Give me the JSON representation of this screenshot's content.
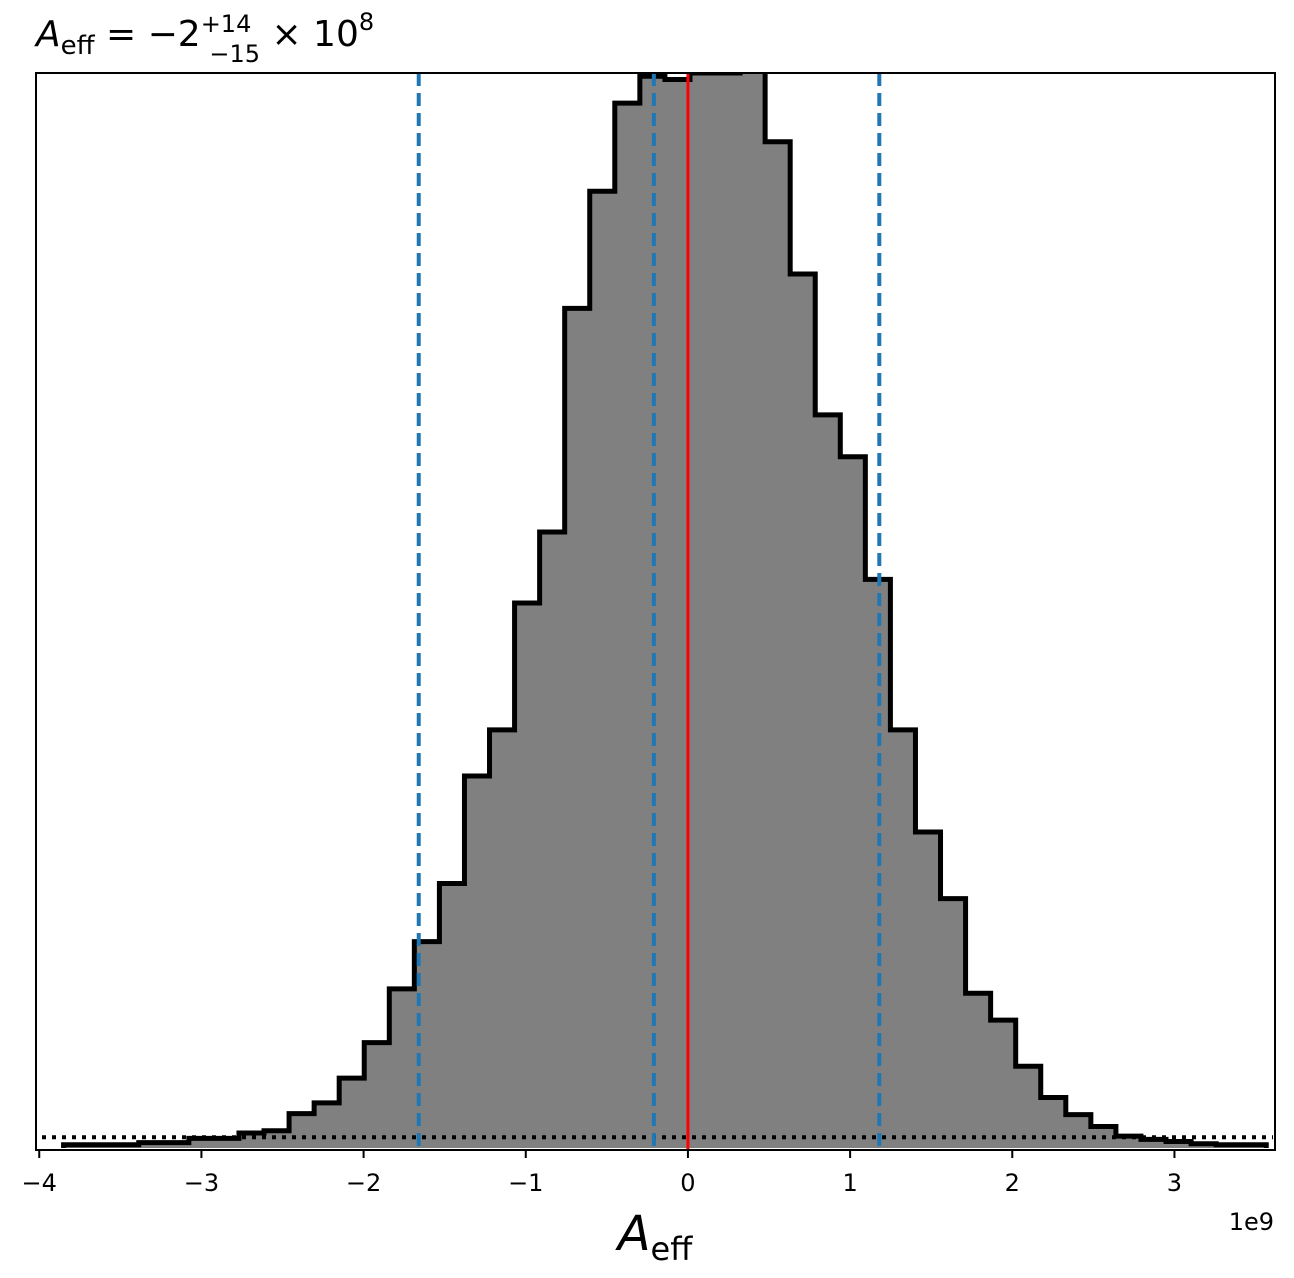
{
  "chart_data": {
    "type": "bar",
    "histogram": true,
    "title": {
      "base": "A",
      "sub": "eff",
      "eq": " = −2",
      "sup": "+14",
      "low": "−15",
      "times": " × 10",
      "exp": "8"
    },
    "xlabel": {
      "base": "A",
      "sub": "eff"
    },
    "x_offset_label": "1e9",
    "xlim": [
      -4.02,
      3.62
    ],
    "ylim": [
      0,
      1.0
    ],
    "xticks": [
      -4,
      -3,
      -2,
      -1,
      0,
      1,
      2,
      3
    ],
    "xtick_labels": [
      "−4",
      "−3",
      "−2",
      "−1",
      "0",
      "1",
      "2",
      "3"
    ],
    "y_axis_visible": false,
    "bin_width": 0.1545,
    "bin_start": -3.85,
    "bin_values": [
      0.003,
      0.003,
      0.003,
      0.005,
      0.005,
      0.009,
      0.009,
      0.014,
      0.016,
      0.032,
      0.042,
      0.065,
      0.098,
      0.148,
      0.192,
      0.246,
      0.346,
      0.389,
      0.507,
      0.573,
      0.781,
      0.89,
      0.972,
      0.997,
      0.994,
      1.0,
      1.0,
      1.009,
      0.936,
      0.813,
      0.682,
      0.643,
      0.529,
      0.389,
      0.294,
      0.232,
      0.144,
      0.119,
      0.076,
      0.047,
      0.031,
      0.02,
      0.011,
      0.008,
      0.006,
      0.004,
      0.003,
      0.003
    ],
    "fill_color": "#808080",
    "edge_color": "#000000",
    "vlines": [
      {
        "x": -1.66,
        "style": "dashed",
        "color": "#1f77b4"
      },
      {
        "x": -0.21,
        "style": "dashed",
        "color": "#1f77b4"
      },
      {
        "x": 1.18,
        "style": "dashed",
        "color": "#1f77b4"
      },
      {
        "x": 0.0,
        "style": "solid",
        "color": "#ff0000"
      }
    ],
    "hline": {
      "y": 0.01,
      "style": "dotted",
      "color": "#000000"
    }
  }
}
